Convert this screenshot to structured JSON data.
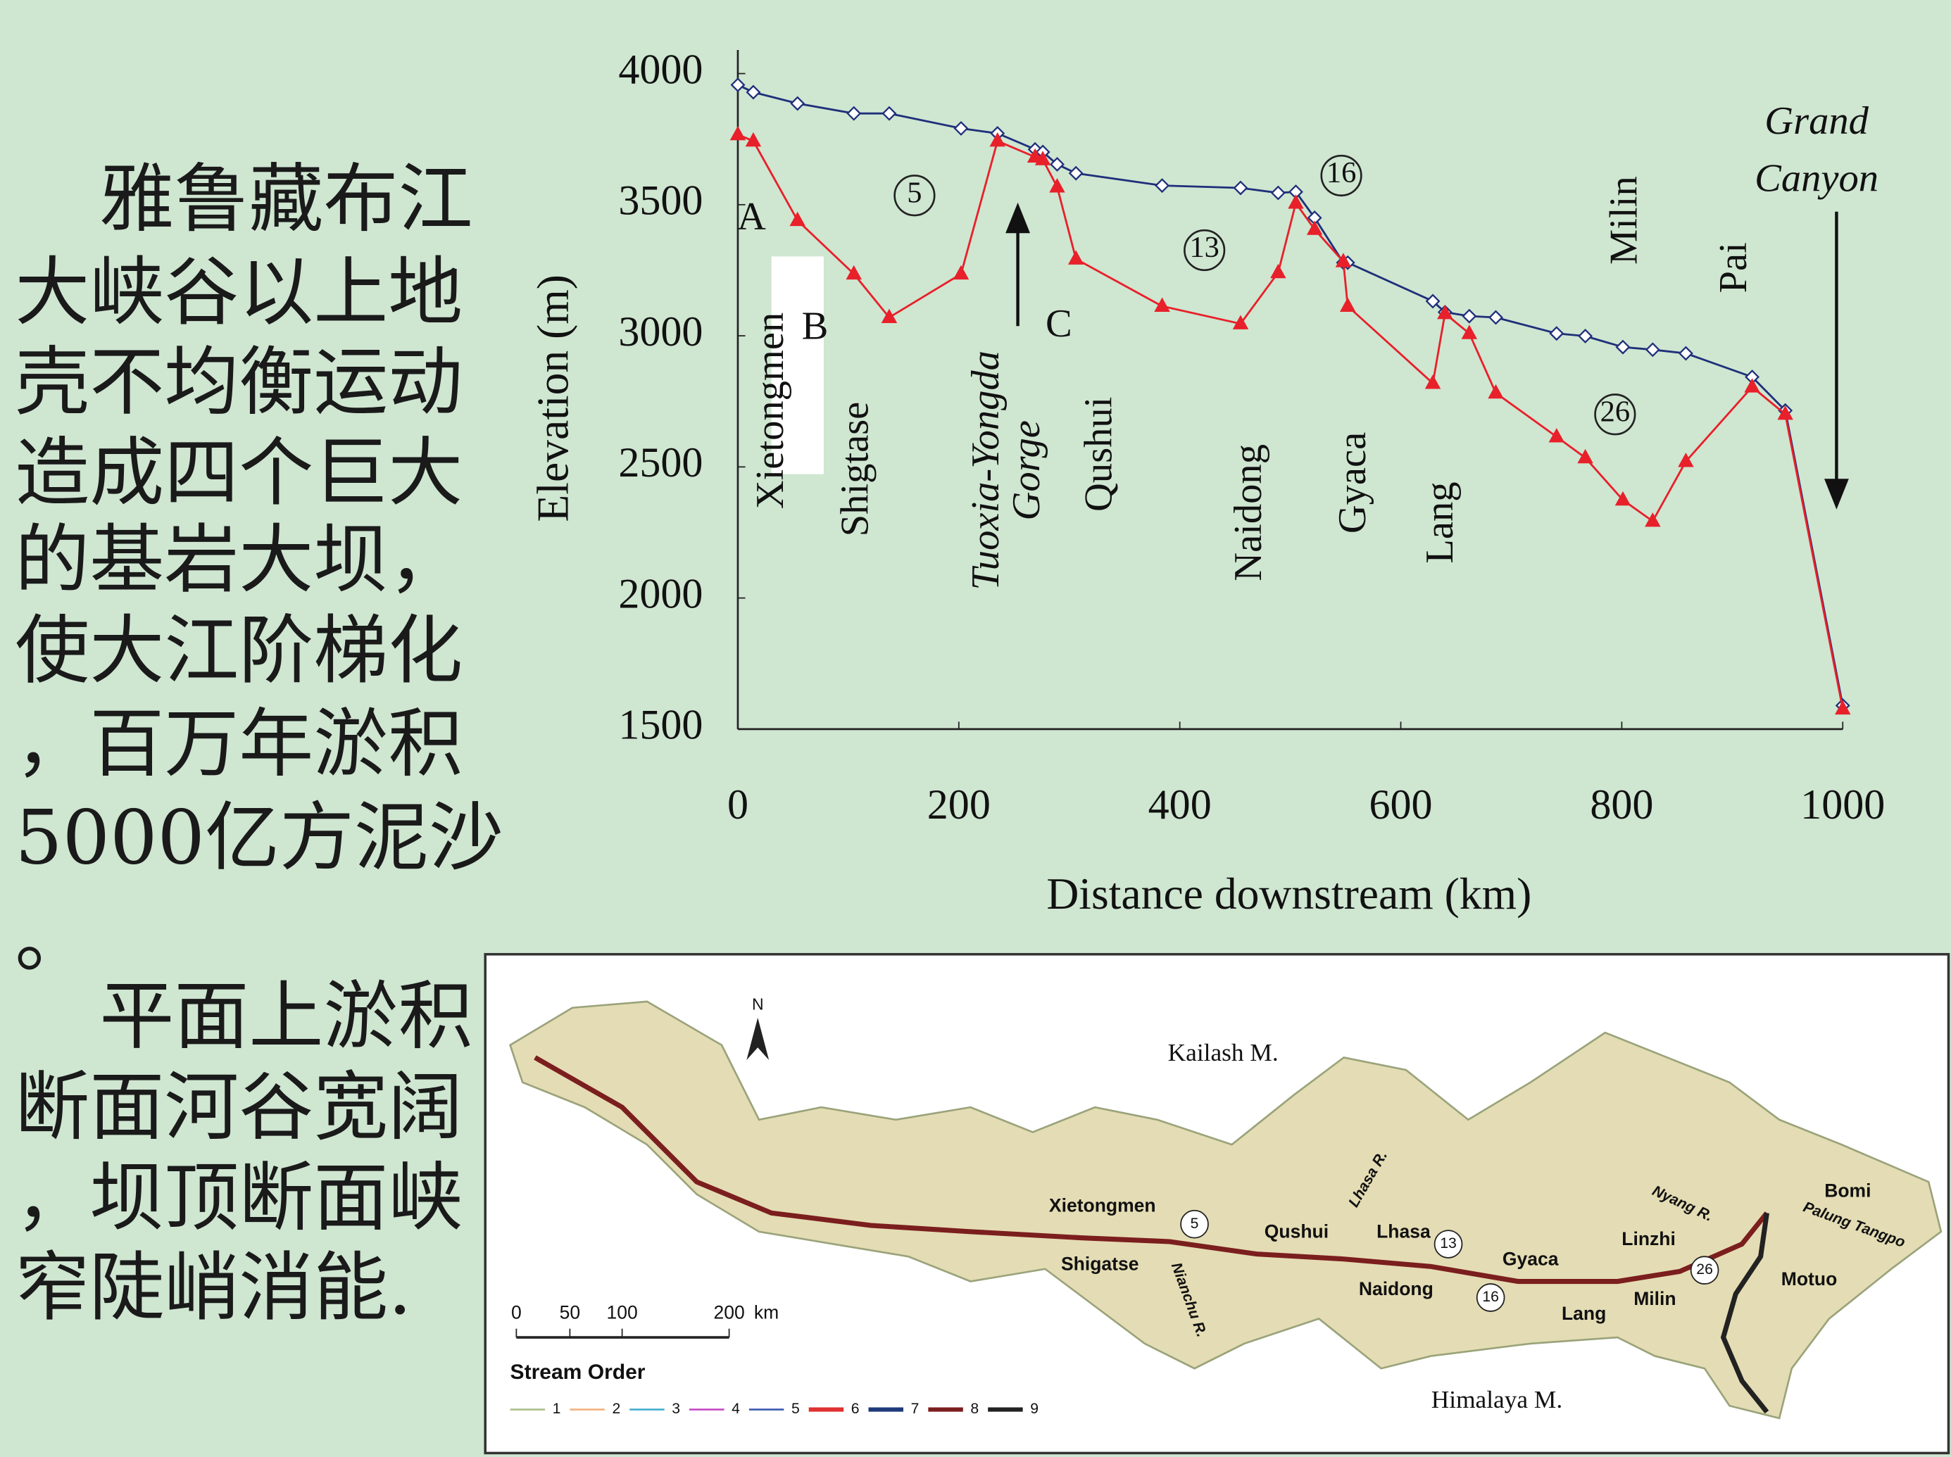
{
  "chart_data": {
    "type": "line",
    "xlabel": "Distance downstream (km)",
    "ylabel": "Elevation (m)",
    "xlim": [
      0,
      1000
    ],
    "ylim": [
      1500,
      4000
    ],
    "xticks": [
      0,
      200,
      400,
      600,
      800,
      1000
    ],
    "yticks": [
      1500,
      2000,
      2500,
      3000,
      3500,
      4000
    ],
    "x": [
      0,
      14,
      54,
      105,
      137,
      202,
      235,
      269,
      276,
      289,
      306,
      384,
      455,
      489,
      505,
      522,
      548,
      552,
      629,
      640,
      662,
      686,
      741,
      767,
      801,
      828,
      858,
      918,
      948,
      1000
    ],
    "series": [
      {
        "color": "#1f2f7a",
        "marker": "diamond",
        "values": [
          3957,
          3929,
          3886,
          3848,
          3848,
          3791,
          3772,
          3711,
          3701,
          3654,
          3620,
          3573,
          3564,
          3545,
          3549,
          3450,
          3279,
          3279,
          3132,
          3090,
          3075,
          3070,
          3009,
          2999,
          2957,
          2947,
          2933,
          2843,
          2715,
          1590
        ]
      },
      {
        "color": "#e8202a",
        "marker": "triangle",
        "values": [
          3767,
          3743,
          3440,
          3236,
          3070,
          3236,
          3743,
          3682,
          3672,
          3568,
          3293,
          3113,
          3046,
          3241,
          3506,
          3406,
          3283,
          3113,
          2819,
          3085,
          3009,
          2782,
          2615,
          2535,
          2374,
          2293,
          2521,
          2805,
          2701,
          1577
        ]
      }
    ],
    "annotations": [
      "A",
      "B",
      "C",
      "5",
      "13",
      "16",
      "26",
      "Xietongmen",
      "Shigtase",
      "Tuoxia-Yongda",
      "Gorge",
      "Qushui",
      "Naidong",
      "Gyaca",
      "Lang",
      "Milin",
      "Pai",
      "Grand",
      "Canyon"
    ]
  },
  "text_panel": {
    "lines": [
      "雅鲁藏布江",
      "大峡谷以上地",
      "壳不均衡运动",
      "造成四个巨大",
      "的基岩大坝，",
      "使大江阶梯化",
      "，百万年淤积",
      "5000亿方泥沙",
      "。",
      "平面上淤积",
      "断面河谷宽阔",
      "，坝顶断面峡",
      "窄陡峭消能."
    ]
  },
  "map": {
    "north": "N",
    "labels": [
      "Kailash M.",
      "Himalaya M.",
      "Xietongmen",
      "Shigatse",
      "Nianchu R.",
      "Qushui",
      "Lhasa",
      "Lhasa R.",
      "Naidong",
      "Gyaca",
      "Lang",
      "Linzhi",
      "Milin",
      "Nyang R.",
      "Motuo",
      "Bomi",
      "Palung Tangpo",
      "5",
      "13",
      "16",
      "26"
    ],
    "scale": {
      "ticks": [
        "0",
        "50",
        "100",
        "200"
      ],
      "unit": "km"
    },
    "legend": {
      "title": "Stream Order",
      "items": [
        {
          "label": "1",
          "color": "#a9bf8c"
        },
        {
          "label": "2",
          "color": "#f2b07e"
        },
        {
          "label": "3",
          "color": "#43aed0"
        },
        {
          "label": "4",
          "color": "#c548c5"
        },
        {
          "label": "5",
          "color": "#3a58b0"
        },
        {
          "label": "6",
          "color": "#e03030"
        },
        {
          "label": "7",
          "color": "#1f3a7a"
        },
        {
          "label": "8",
          "color": "#7b1e1e"
        },
        {
          "label": "9",
          "color": "#222222"
        }
      ]
    }
  }
}
